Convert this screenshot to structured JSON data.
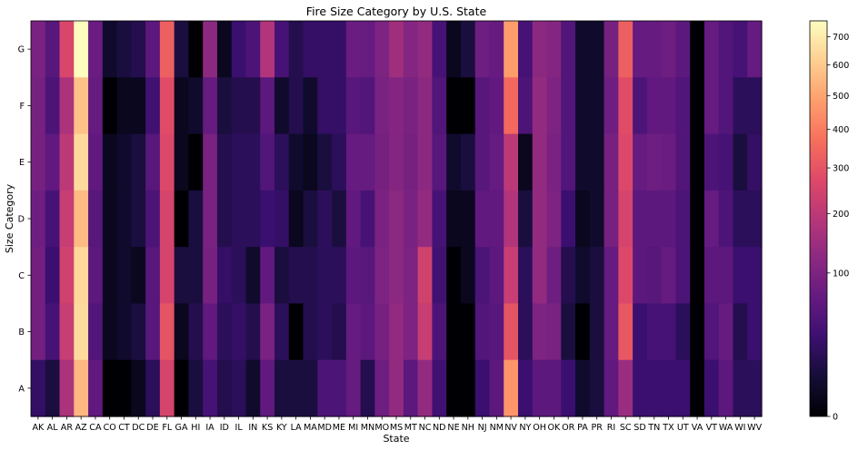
{
  "chart_data": {
    "type": "heatmap",
    "title": "Fire Size Category by U.S. State",
    "xlabel": "State",
    "ylabel": "Size Category",
    "colormap": "magma",
    "color_scale": "sqrt",
    "vmin": 0,
    "vmax": 760,
    "colorbar_ticks": [
      0,
      100,
      200,
      300,
      400,
      500,
      600,
      700
    ],
    "rows": [
      "G",
      "F",
      "E",
      "D",
      "C",
      "B",
      "A"
    ],
    "columns": [
      "AK",
      "AL",
      "AR",
      "AZ",
      "CA",
      "CO",
      "CT",
      "DC",
      "DE",
      "FL",
      "GA",
      "HI",
      "IA",
      "ID",
      "IL",
      "IN",
      "KS",
      "KY",
      "LA",
      "MA",
      "MD",
      "ME",
      "MI",
      "MN",
      "MO",
      "MS",
      "MT",
      "NC",
      "ND",
      "NE",
      "NH",
      "NJ",
      "NM",
      "NV",
      "NY",
      "OH",
      "OK",
      "OR",
      "PA",
      "PR",
      "RI",
      "SC",
      "SD",
      "TN",
      "TX",
      "UT",
      "VA",
      "VT",
      "WA",
      "WI",
      "WV"
    ],
    "values": [
      [
        95,
        55,
        260,
        760,
        75,
        5,
        10,
        15,
        60,
        330,
        10,
        0,
        120,
        2,
        30,
        45,
        180,
        40,
        15,
        25,
        25,
        25,
        75,
        70,
        100,
        150,
        110,
        130,
        40,
        2,
        10,
        80,
        70,
        480,
        40,
        120,
        110,
        50,
        5,
        5,
        90,
        330,
        70,
        70,
        80,
        60,
        0,
        70,
        50,
        40,
        70
      ],
      [
        90,
        45,
        170,
        580,
        70,
        0,
        2,
        2,
        35,
        280,
        2,
        5,
        70,
        10,
        15,
        15,
        60,
        5,
        15,
        5,
        25,
        25,
        55,
        50,
        95,
        110,
        95,
        120,
        50,
        0,
        0,
        55,
        65,
        350,
        45,
        130,
        100,
        50,
        5,
        5,
        80,
        280,
        45,
        65,
        65,
        50,
        0,
        70,
        50,
        20,
        20
      ],
      [
        90,
        65,
        200,
        650,
        65,
        2,
        5,
        10,
        55,
        270,
        2,
        0,
        95,
        15,
        20,
        20,
        50,
        20,
        5,
        2,
        10,
        20,
        70,
        70,
        90,
        110,
        90,
        120,
        55,
        5,
        10,
        55,
        70,
        200,
        2,
        130,
        95,
        50,
        5,
        5,
        90,
        270,
        70,
        80,
        75,
        50,
        0,
        45,
        40,
        10,
        25
      ],
      [
        80,
        40,
        220,
        560,
        55,
        2,
        5,
        10,
        45,
        250,
        0,
        10,
        95,
        15,
        20,
        20,
        30,
        25,
        2,
        10,
        20,
        10,
        65,
        40,
        95,
        120,
        95,
        130,
        40,
        2,
        2,
        65,
        65,
        180,
        10,
        130,
        100,
        30,
        2,
        5,
        90,
        250,
        60,
        60,
        60,
        45,
        0,
        70,
        45,
        20,
        20
      ],
      [
        85,
        30,
        240,
        640,
        60,
        2,
        5,
        2,
        55,
        250,
        10,
        10,
        90,
        25,
        20,
        5,
        65,
        10,
        15,
        15,
        20,
        20,
        60,
        55,
        100,
        120,
        100,
        240,
        35,
        0,
        2,
        45,
        60,
        220,
        20,
        130,
        80,
        15,
        5,
        10,
        70,
        270,
        60,
        55,
        70,
        45,
        0,
        60,
        60,
        30,
        30
      ],
      [
        85,
        40,
        220,
        650,
        50,
        2,
        5,
        10,
        55,
        300,
        2,
        15,
        65,
        20,
        25,
        15,
        95,
        20,
        0,
        15,
        20,
        15,
        70,
        60,
        90,
        130,
        100,
        220,
        45,
        0,
        0,
        50,
        55,
        300,
        20,
        100,
        95,
        10,
        0,
        10,
        70,
        310,
        30,
        40,
        40,
        20,
        0,
        50,
        70,
        15,
        30
      ],
      [
        25,
        10,
        170,
        550,
        65,
        0,
        0,
        2,
        20,
        250,
        0,
        10,
        40,
        15,
        20,
        5,
        65,
        10,
        10,
        10,
        45,
        45,
        70,
        15,
        80,
        130,
        60,
        130,
        35,
        0,
        0,
        30,
        60,
        460,
        30,
        60,
        60,
        30,
        5,
        10,
        65,
        140,
        30,
        30,
        30,
        30,
        0,
        30,
        60,
        20,
        20
      ]
    ]
  }
}
